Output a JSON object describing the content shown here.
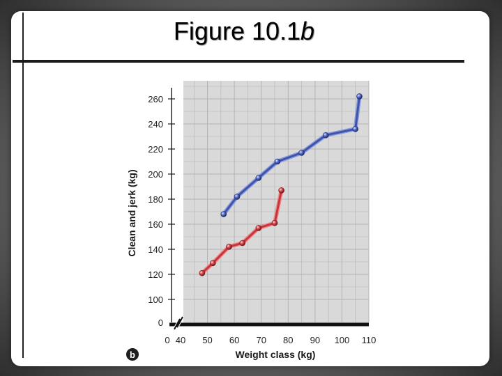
{
  "slide": {
    "title_main": "Figure 10.1",
    "title_italic": "b",
    "panel_label": "b"
  },
  "chart_data": {
    "type": "line",
    "xlabel": "Weight class (kg)",
    "ylabel": "Clean and jerk (kg)",
    "x_ticks": [
      "0",
      "40",
      "50",
      "60",
      "70",
      "80",
      "90",
      "100",
      "110"
    ],
    "y_ticks": [
      "0",
      "100",
      "120",
      "140",
      "160",
      "180",
      "200",
      "220",
      "240",
      "260"
    ],
    "xlim": [
      40,
      110
    ],
    "ylim": [
      90,
      270
    ],
    "axis_break": true,
    "grid": true,
    "colors": {
      "series_1": "#3f54a8",
      "series_2": "#c8353a",
      "grid_bg": "#d9d9d9",
      "grid_line": "#b4b4b4"
    },
    "series": [
      {
        "color": "#3f54a8",
        "x": [
          56,
          61,
          69,
          76,
          85,
          94,
          105,
          106.5
        ],
        "y": [
          168,
          182,
          197,
          210,
          217,
          231,
          236,
          262
        ]
      },
      {
        "color": "#c8353a",
        "x": [
          48,
          52,
          58,
          63,
          69,
          75,
          77.5
        ],
        "y": [
          121,
          129,
          142,
          145,
          157,
          161,
          187
        ]
      }
    ]
  }
}
